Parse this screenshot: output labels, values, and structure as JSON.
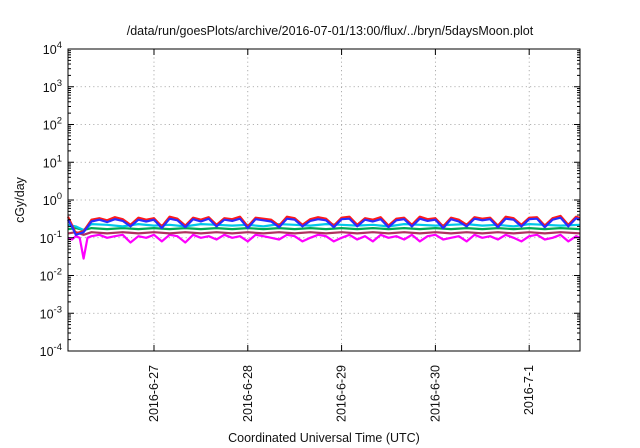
{
  "chart_data": {
    "type": "line",
    "title": "/data/run/goesPlots/archive/2016-07-01/13:00/flux/../bryn/5daysMoon.plot",
    "xlabel": "Coordinated Universal Time (UTC)",
    "ylabel": "cGy/day",
    "yscale": "log",
    "ylim": [
      0.0001,
      10000
    ],
    "xlim": [
      "2016-06-26 02:00",
      "2016-07-01 13:00"
    ],
    "grid": true,
    "x_ticks": [
      {
        "value": "2016-06-27 00:00",
        "label": "2016-6-27"
      },
      {
        "value": "2016-06-28 00:00",
        "label": "2016-6-28"
      },
      {
        "value": "2016-06-29 00:00",
        "label": "2016-6-29"
      },
      {
        "value": "2016-06-30 00:00",
        "label": "2016-6-30"
      },
      {
        "value": "2016-07-01 00:00",
        "label": "2016-7-1"
      }
    ],
    "y_ticks": [
      {
        "value": 0.0001,
        "base": "10",
        "exp": "-4"
      },
      {
        "value": 0.001,
        "base": "10",
        "exp": "-3"
      },
      {
        "value": 0.01,
        "base": "10",
        "exp": "-2"
      },
      {
        "value": 0.1,
        "base": "10",
        "exp": "-1"
      },
      {
        "value": 1,
        "base": "10",
        "exp": "0"
      },
      {
        "value": 10,
        "base": "10",
        "exp": "1"
      },
      {
        "value": 100,
        "base": "10",
        "exp": "2"
      },
      {
        "value": 1000,
        "base": "10",
        "exp": "3"
      },
      {
        "value": 10000,
        "base": "10",
        "exp": "4"
      }
    ],
    "series": [
      {
        "color": "#ff00ff",
        "x": [
          "2016-06-26 02:00",
          "2016-06-26 03:00",
          "2016-06-26 04:00",
          "2016-06-26 05:00",
          "2016-06-26 06:00",
          "2016-06-26 07:00",
          "2016-06-26 08:00",
          "2016-06-26 10:00",
          "2016-06-26 12:00",
          "2016-06-26 14:00",
          "2016-06-26 16:00",
          "2016-06-26 18:00",
          "2016-06-26 20:00",
          "2016-06-26 22:00",
          "2016-06-27 00:00",
          "2016-06-27 02:00",
          "2016-06-27 04:00",
          "2016-06-27 06:00",
          "2016-06-27 08:00",
          "2016-06-27 10:00",
          "2016-06-27 12:00",
          "2016-06-27 14:00",
          "2016-06-27 16:00",
          "2016-06-27 18:00",
          "2016-06-27 20:00",
          "2016-06-27 22:00",
          "2016-06-28 00:00",
          "2016-06-28 02:00",
          "2016-06-28 04:00",
          "2016-06-28 06:00",
          "2016-06-28 08:00",
          "2016-06-28 10:00",
          "2016-06-28 12:00",
          "2016-06-28 14:00",
          "2016-06-28 16:00",
          "2016-06-28 18:00",
          "2016-06-28 20:00",
          "2016-06-28 22:00",
          "2016-06-29 00:00",
          "2016-06-29 02:00",
          "2016-06-29 04:00",
          "2016-06-29 06:00",
          "2016-06-29 08:00",
          "2016-06-29 10:00",
          "2016-06-29 12:00",
          "2016-06-29 14:00",
          "2016-06-29 16:00",
          "2016-06-29 18:00",
          "2016-06-29 20:00",
          "2016-06-29 22:00",
          "2016-06-30 00:00",
          "2016-06-30 02:00",
          "2016-06-30 04:00",
          "2016-06-30 06:00",
          "2016-06-30 08:00",
          "2016-06-30 10:00",
          "2016-06-30 12:00",
          "2016-06-30 14:00",
          "2016-06-30 16:00",
          "2016-06-30 18:00",
          "2016-06-30 20:00",
          "2016-06-30 22:00",
          "2016-07-01 00:00",
          "2016-07-01 02:00",
          "2016-07-01 04:00",
          "2016-07-01 06:00",
          "2016-07-01 08:00",
          "2016-07-01 10:00",
          "2016-07-01 12:00",
          "2016-07-01 13:00"
        ],
        "y": [
          0.1,
          0.09,
          0.11,
          0.1,
          0.028,
          0.1,
          0.11,
          0.12,
          0.1,
          0.11,
          0.12,
          0.075,
          0.11,
          0.1,
          0.12,
          0.08,
          0.12,
          0.11,
          0.075,
          0.12,
          0.1,
          0.11,
          0.09,
          0.12,
          0.1,
          0.11,
          0.08,
          0.12,
          0.11,
          0.1,
          0.09,
          0.12,
          0.11,
          0.08,
          0.1,
          0.12,
          0.11,
          0.08,
          0.1,
          0.12,
          0.09,
          0.11,
          0.08,
          0.12,
          0.1,
          0.11,
          0.09,
          0.12,
          0.08,
          0.11,
          0.12,
          0.09,
          0.1,
          0.11,
          0.08,
          0.12,
          0.1,
          0.11,
          0.09,
          0.12,
          0.1,
          0.08,
          0.11,
          0.12,
          0.09,
          0.1,
          0.12,
          0.08,
          0.11,
          0.1
        ]
      },
      {
        "color": "#b03060",
        "x": [
          "2016-06-26 02:00",
          "2016-06-26 04:00",
          "2016-06-26 06:00",
          "2016-06-26 08:00",
          "2016-06-26 12:00",
          "2016-06-26 16:00",
          "2016-06-26 20:00",
          "2016-06-27 00:00",
          "2016-06-27 04:00",
          "2016-06-27 08:00",
          "2016-06-27 12:00",
          "2016-06-27 16:00",
          "2016-06-27 20:00",
          "2016-06-28 00:00",
          "2016-06-28 04:00",
          "2016-06-28 08:00",
          "2016-06-28 12:00",
          "2016-06-28 16:00",
          "2016-06-28 20:00",
          "2016-06-29 00:00",
          "2016-06-29 04:00",
          "2016-06-29 08:00",
          "2016-06-29 12:00",
          "2016-06-29 16:00",
          "2016-06-29 20:00",
          "2016-06-30 00:00",
          "2016-06-30 04:00",
          "2016-06-30 08:00",
          "2016-06-30 12:00",
          "2016-06-30 16:00",
          "2016-06-30 20:00",
          "2016-07-01 00:00",
          "2016-07-01 04:00",
          "2016-07-01 08:00",
          "2016-07-01 13:00"
        ],
        "y": [
          0.13,
          0.14,
          0.12,
          0.14,
          0.13,
          0.14,
          0.13,
          0.14,
          0.13,
          0.14,
          0.13,
          0.14,
          0.13,
          0.14,
          0.13,
          0.14,
          0.13,
          0.14,
          0.13,
          0.14,
          0.13,
          0.14,
          0.13,
          0.14,
          0.13,
          0.14,
          0.13,
          0.14,
          0.13,
          0.14,
          0.13,
          0.14,
          0.13,
          0.14,
          0.13
        ]
      },
      {
        "color": "#00aa55",
        "x": [
          "2016-06-26 02:00",
          "2016-06-26 04:00",
          "2016-06-26 06:00",
          "2016-06-26 08:00",
          "2016-06-26 12:00",
          "2016-06-26 16:00",
          "2016-06-26 20:00",
          "2016-06-27 00:00",
          "2016-06-27 04:00",
          "2016-06-27 08:00",
          "2016-06-27 12:00",
          "2016-06-27 16:00",
          "2016-06-27 20:00",
          "2016-06-28 00:00",
          "2016-06-28 04:00",
          "2016-06-28 08:00",
          "2016-06-28 12:00",
          "2016-06-28 16:00",
          "2016-06-28 20:00",
          "2016-06-29 00:00",
          "2016-06-29 04:00",
          "2016-06-29 08:00",
          "2016-06-29 12:00",
          "2016-06-29 16:00",
          "2016-06-29 20:00",
          "2016-06-30 00:00",
          "2016-06-30 04:00",
          "2016-06-30 08:00",
          "2016-06-30 12:00",
          "2016-06-30 16:00",
          "2016-06-30 20:00",
          "2016-07-01 00:00",
          "2016-07-01 04:00",
          "2016-07-01 08:00",
          "2016-07-01 13:00"
        ],
        "y": [
          0.17,
          0.18,
          0.16,
          0.18,
          0.17,
          0.18,
          0.17,
          0.18,
          0.17,
          0.18,
          0.17,
          0.18,
          0.17,
          0.18,
          0.17,
          0.18,
          0.17,
          0.18,
          0.17,
          0.18,
          0.17,
          0.18,
          0.17,
          0.18,
          0.17,
          0.18,
          0.17,
          0.18,
          0.17,
          0.18,
          0.17,
          0.18,
          0.17,
          0.18,
          0.17
        ]
      },
      {
        "color": "#00c8e8",
        "x": [
          "2016-06-26 02:00",
          "2016-06-26 04:00",
          "2016-06-26 06:00",
          "2016-06-26 08:00",
          "2016-06-26 12:00",
          "2016-06-26 16:00",
          "2016-06-26 20:00",
          "2016-06-27 00:00",
          "2016-06-27 04:00",
          "2016-06-27 08:00",
          "2016-06-27 12:00",
          "2016-06-27 16:00",
          "2016-06-27 20:00",
          "2016-06-28 00:00",
          "2016-06-28 04:00",
          "2016-06-28 08:00",
          "2016-06-28 12:00",
          "2016-06-28 16:00",
          "2016-06-28 20:00",
          "2016-06-29 00:00",
          "2016-06-29 04:00",
          "2016-06-29 08:00",
          "2016-06-29 12:00",
          "2016-06-29 16:00",
          "2016-06-29 20:00",
          "2016-06-30 00:00",
          "2016-06-30 04:00",
          "2016-06-30 08:00",
          "2016-06-30 12:00",
          "2016-06-30 16:00",
          "2016-06-30 20:00",
          "2016-07-01 00:00",
          "2016-07-01 04:00",
          "2016-07-01 08:00",
          "2016-07-01 13:00"
        ],
        "y": [
          0.22,
          0.2,
          0.16,
          0.23,
          0.22,
          0.2,
          0.23,
          0.21,
          0.22,
          0.2,
          0.23,
          0.22,
          0.21,
          0.22,
          0.2,
          0.23,
          0.22,
          0.21,
          0.23,
          0.22,
          0.21,
          0.22,
          0.2,
          0.23,
          0.22,
          0.21,
          0.22,
          0.23,
          0.21,
          0.22,
          0.2,
          0.23,
          0.22,
          0.21,
          0.22
        ]
      },
      {
        "color": "#ff1a1a",
        "x": [
          "2016-06-26 02:00",
          "2016-06-26 03:00",
          "2016-06-26 04:00",
          "2016-06-26 06:00",
          "2016-06-26 08:00",
          "2016-06-26 10:00",
          "2016-06-26 12:00",
          "2016-06-26 14:00",
          "2016-06-26 16:00",
          "2016-06-26 18:00",
          "2016-06-26 20:00",
          "2016-06-26 22:00",
          "2016-06-27 00:00",
          "2016-06-27 02:00",
          "2016-06-27 04:00",
          "2016-06-27 06:00",
          "2016-06-27 08:00",
          "2016-06-27 10:00",
          "2016-06-27 12:00",
          "2016-06-27 14:00",
          "2016-06-27 16:00",
          "2016-06-27 18:00",
          "2016-06-27 20:00",
          "2016-06-27 22:00",
          "2016-06-28 00:00",
          "2016-06-28 02:00",
          "2016-06-28 04:00",
          "2016-06-28 06:00",
          "2016-06-28 08:00",
          "2016-06-28 10:00",
          "2016-06-28 12:00",
          "2016-06-28 14:00",
          "2016-06-28 16:00",
          "2016-06-28 18:00",
          "2016-06-28 20:00",
          "2016-06-28 22:00",
          "2016-06-29 00:00",
          "2016-06-29 02:00",
          "2016-06-29 04:00",
          "2016-06-29 06:00",
          "2016-06-29 08:00",
          "2016-06-29 10:00",
          "2016-06-29 12:00",
          "2016-06-29 14:00",
          "2016-06-29 16:00",
          "2016-06-29 18:00",
          "2016-06-29 20:00",
          "2016-06-29 22:00",
          "2016-06-30 00:00",
          "2016-06-30 02:00",
          "2016-06-30 04:00",
          "2016-06-30 06:00",
          "2016-06-30 08:00",
          "2016-06-30 10:00",
          "2016-06-30 12:00",
          "2016-06-30 14:00",
          "2016-06-30 16:00",
          "2016-06-30 18:00",
          "2016-06-30 20:00",
          "2016-06-30 22:00",
          "2016-07-01 00:00",
          "2016-07-01 02:00",
          "2016-07-01 04:00",
          "2016-07-01 06:00",
          "2016-07-01 08:00",
          "2016-07-01 10:00",
          "2016-07-01 12:00",
          "2016-07-01 13:00"
        ],
        "y": [
          0.36,
          0.22,
          0.13,
          0.15,
          0.3,
          0.33,
          0.29,
          0.35,
          0.31,
          0.22,
          0.34,
          0.3,
          0.33,
          0.2,
          0.36,
          0.32,
          0.21,
          0.34,
          0.3,
          0.35,
          0.22,
          0.33,
          0.31,
          0.36,
          0.2,
          0.34,
          0.32,
          0.3,
          0.21,
          0.36,
          0.33,
          0.22,
          0.31,
          0.35,
          0.32,
          0.21,
          0.34,
          0.36,
          0.22,
          0.33,
          0.3,
          0.35,
          0.21,
          0.32,
          0.34,
          0.22,
          0.36,
          0.31,
          0.33,
          0.2,
          0.34,
          0.3,
          0.22,
          0.35,
          0.32,
          0.34,
          0.21,
          0.36,
          0.33,
          0.22,
          0.34,
          0.35,
          0.21,
          0.33,
          0.38,
          0.22,
          0.36,
          0.33
        ]
      },
      {
        "color": "#2b2bff",
        "x": [
          "2016-06-26 02:00",
          "2016-06-26 03:00",
          "2016-06-26 04:00",
          "2016-06-26 06:00",
          "2016-06-26 08:00",
          "2016-06-26 10:00",
          "2016-06-26 12:00",
          "2016-06-26 14:00",
          "2016-06-26 16:00",
          "2016-06-26 18:00",
          "2016-06-26 20:00",
          "2016-06-26 22:00",
          "2016-06-27 00:00",
          "2016-06-27 02:00",
          "2016-06-27 04:00",
          "2016-06-27 06:00",
          "2016-06-27 08:00",
          "2016-06-27 10:00",
          "2016-06-27 12:00",
          "2016-06-27 14:00",
          "2016-06-27 16:00",
          "2016-06-27 18:00",
          "2016-06-27 20:00",
          "2016-06-27 22:00",
          "2016-06-28 00:00",
          "2016-06-28 02:00",
          "2016-06-28 04:00",
          "2016-06-28 06:00",
          "2016-06-28 08:00",
          "2016-06-28 10:00",
          "2016-06-28 12:00",
          "2016-06-28 14:00",
          "2016-06-28 16:00",
          "2016-06-28 18:00",
          "2016-06-28 20:00",
          "2016-06-28 22:00",
          "2016-06-29 00:00",
          "2016-06-29 02:00",
          "2016-06-29 04:00",
          "2016-06-29 06:00",
          "2016-06-29 08:00",
          "2016-06-29 10:00",
          "2016-06-29 12:00",
          "2016-06-29 14:00",
          "2016-06-29 16:00",
          "2016-06-29 18:00",
          "2016-06-29 20:00",
          "2016-06-29 22:00",
          "2016-06-30 00:00",
          "2016-06-30 02:00",
          "2016-06-30 04:00",
          "2016-06-30 06:00",
          "2016-06-30 08:00",
          "2016-06-30 10:00",
          "2016-06-30 12:00",
          "2016-06-30 14:00",
          "2016-06-30 16:00",
          "2016-06-30 18:00",
          "2016-06-30 20:00",
          "2016-06-30 22:00",
          "2016-07-01 00:00",
          "2016-07-01 02:00",
          "2016-07-01 04:00",
          "2016-07-01 06:00",
          "2016-07-01 08:00",
          "2016-07-01 10:00",
          "2016-07-01 12:00",
          "2016-07-01 13:00"
        ],
        "y": [
          0.3,
          0.2,
          0.12,
          0.14,
          0.27,
          0.3,
          0.26,
          0.31,
          0.28,
          0.2,
          0.3,
          0.27,
          0.3,
          0.18,
          0.32,
          0.29,
          0.19,
          0.31,
          0.27,
          0.32,
          0.2,
          0.3,
          0.28,
          0.32,
          0.18,
          0.31,
          0.29,
          0.27,
          0.19,
          0.32,
          0.3,
          0.2,
          0.28,
          0.31,
          0.29,
          0.19,
          0.31,
          0.32,
          0.2,
          0.3,
          0.27,
          0.31,
          0.19,
          0.29,
          0.31,
          0.2,
          0.32,
          0.28,
          0.3,
          0.18,
          0.31,
          0.27,
          0.2,
          0.32,
          0.29,
          0.31,
          0.19,
          0.32,
          0.3,
          0.2,
          0.31,
          0.32,
          0.19,
          0.3,
          0.34,
          0.2,
          0.33,
          0.3
        ]
      }
    ]
  }
}
